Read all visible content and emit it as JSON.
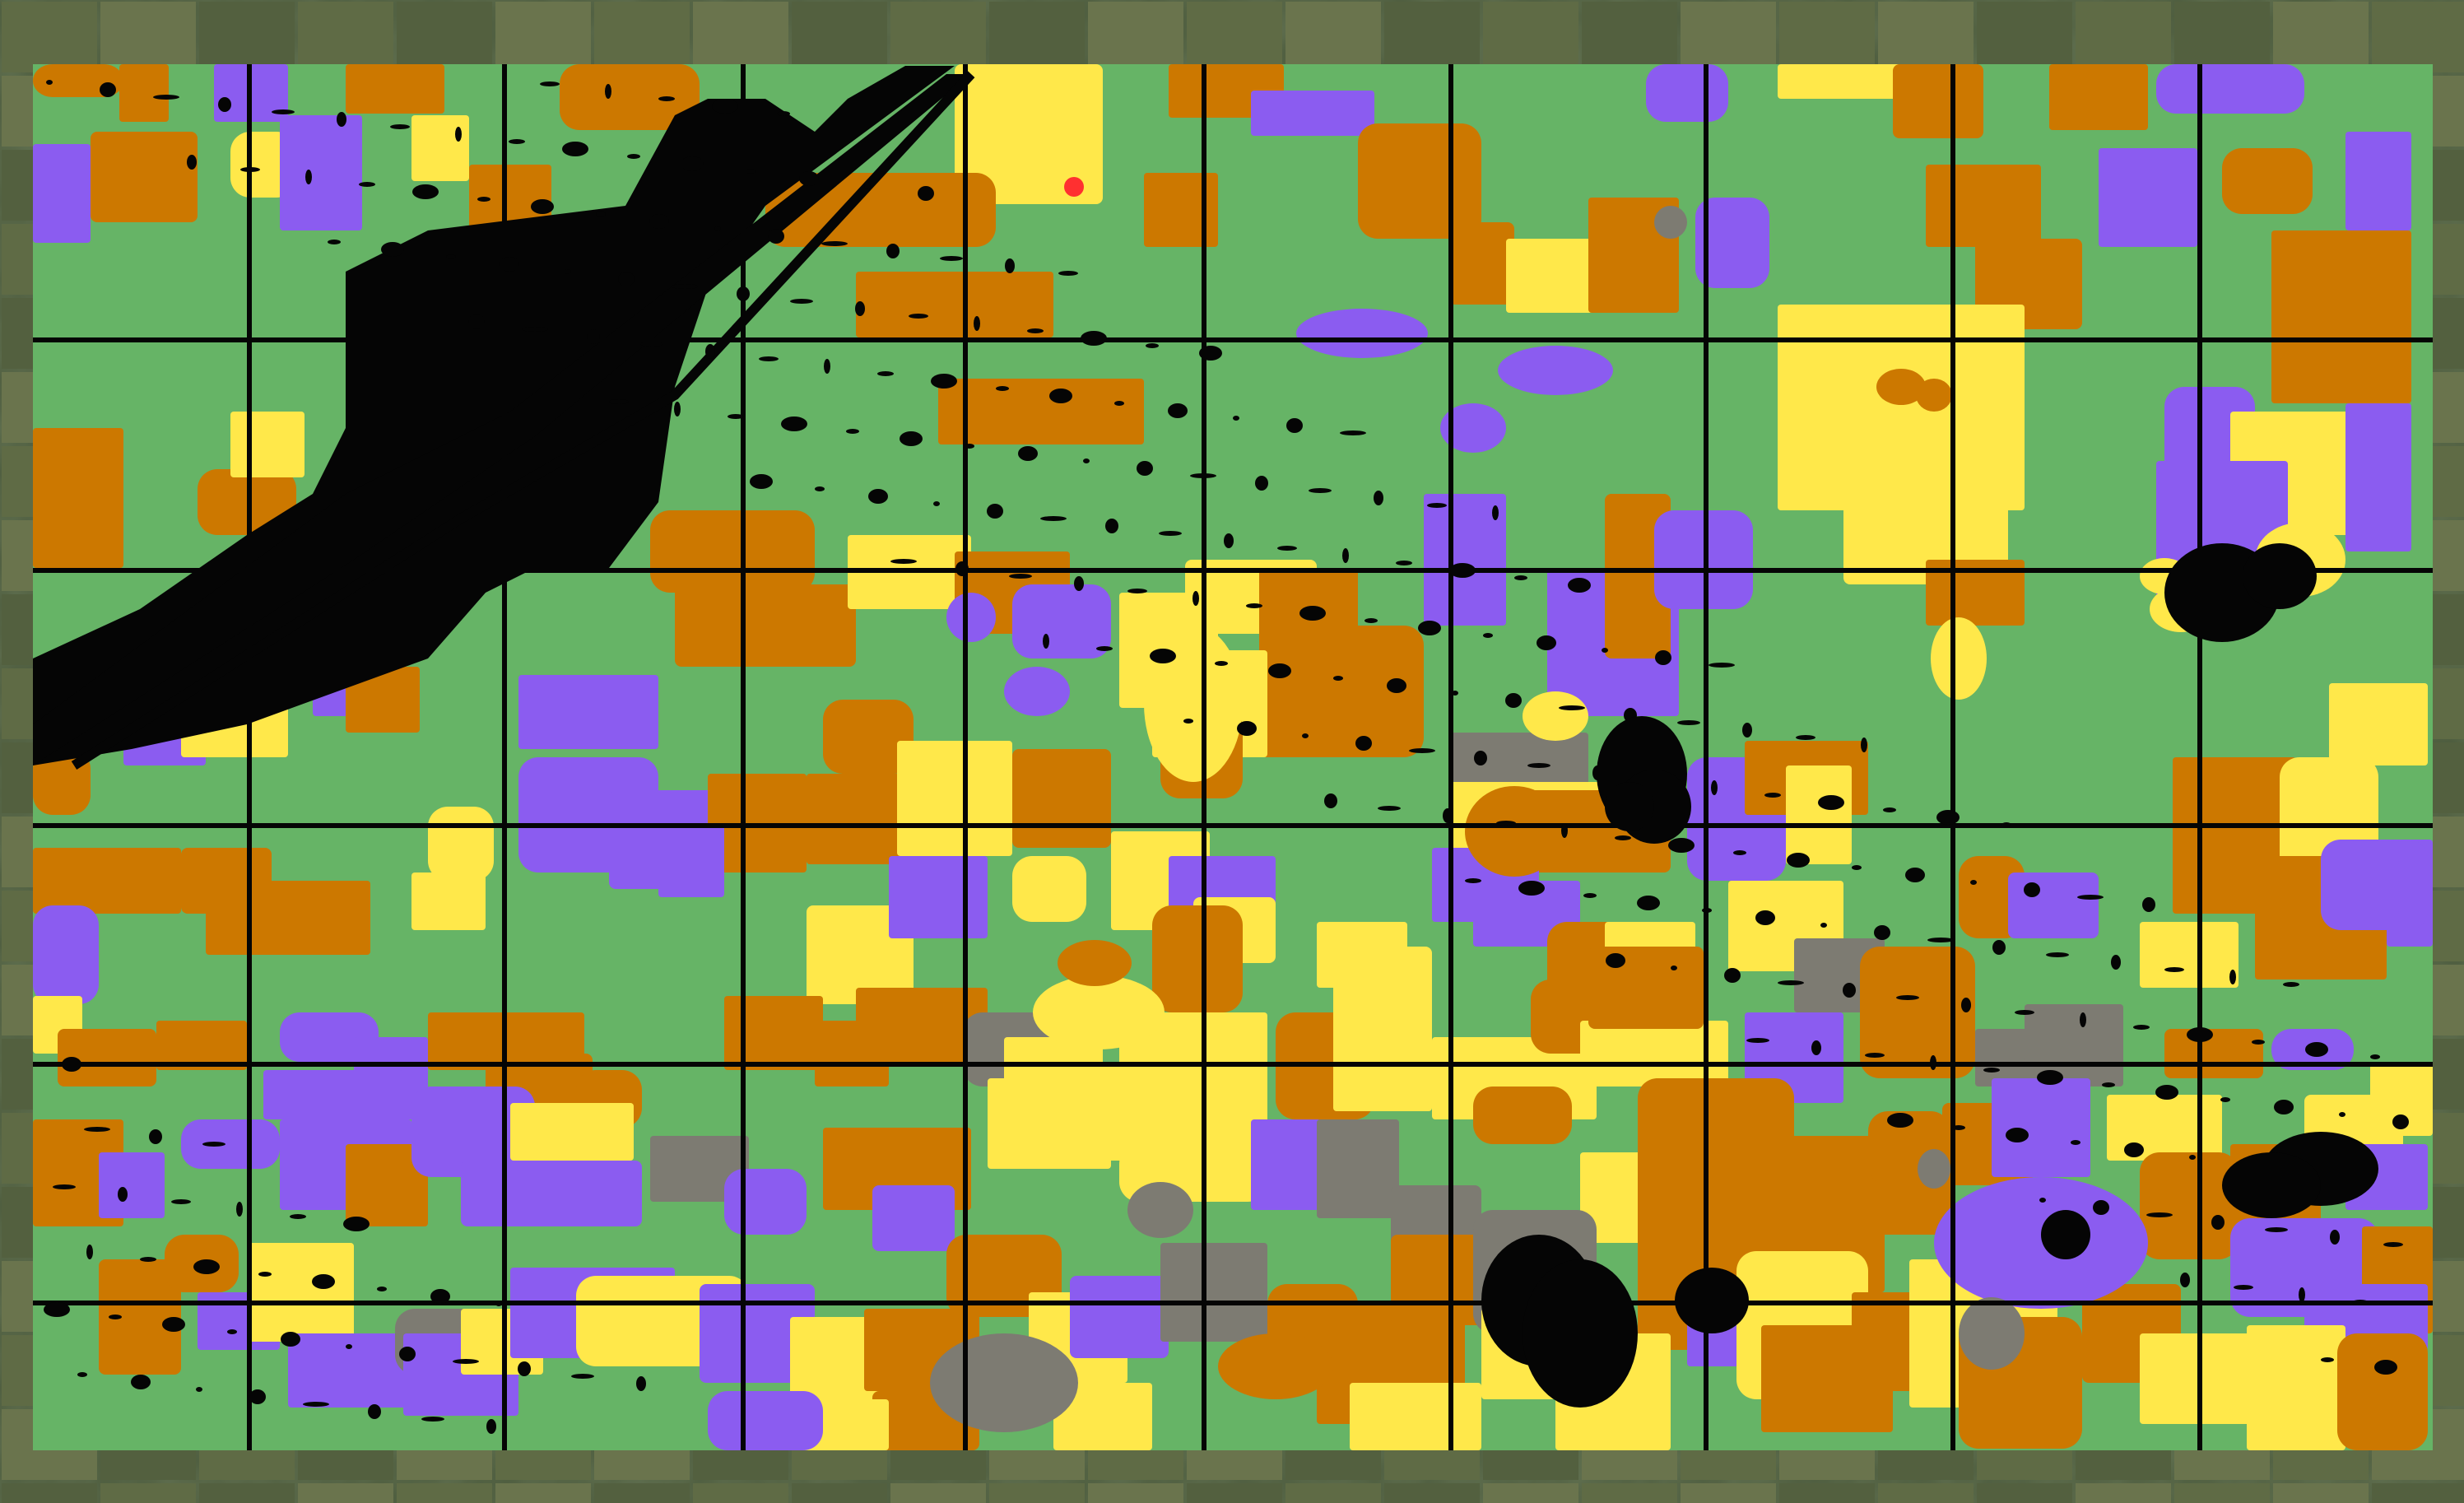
{
  "map": {
    "colors": {
      "green": "#66b466",
      "orange": "#cc7800",
      "yellow": "#ffe84a",
      "purple": "#8b5cf0",
      "black": "#050505",
      "gray": "#7d7b72",
      "dark_gray": "#3b3f3a",
      "red": "#ff3030",
      "satellite_base": "#4b5a3c",
      "satellite_field": "#67724c"
    },
    "classes": [
      "green-class",
      "orange-class",
      "yellow-class",
      "purple-class",
      "black-class",
      "gray-class",
      "dark-gray-class"
    ],
    "marker_icon": "red-location-dot-icon"
  }
}
